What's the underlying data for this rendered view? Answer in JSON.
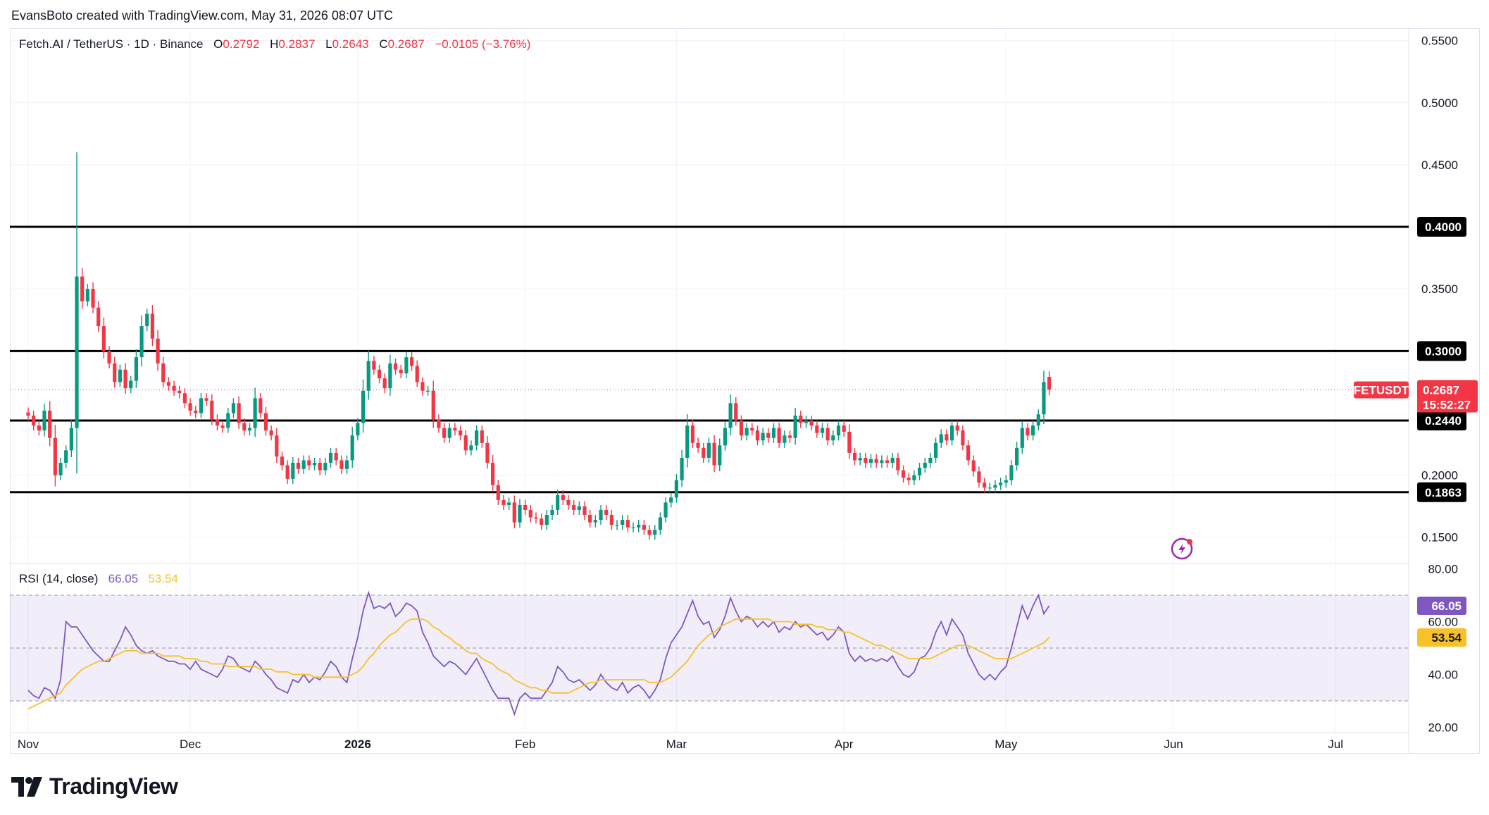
{
  "header": {
    "credit": "EvansBoto created with TradingView.com, May 31, 2026 08:07 UTC"
  },
  "legend": {
    "symbol": "Fetch.AI / TetherUS · 1D · Binance",
    "open_label": "O",
    "open": "0.2792",
    "high_label": "H",
    "high": "0.2837",
    "low_label": "L",
    "low": "0.2643",
    "close_label": "C",
    "close": "0.2687",
    "change": "−0.0105 (−3.76%)"
  },
  "rsi_legend": {
    "label": "RSI (14, close)",
    "rsi": "66.05",
    "ma": "53.54"
  },
  "logo": {
    "text": "TradingView"
  },
  "colors": {
    "up": "#089981",
    "down": "#f23645",
    "rsi": "#7e57c2",
    "rsi_ma": "#f7c12a",
    "level": "#000000"
  },
  "chart_data": [
    {
      "type": "candlestick",
      "symbol": "FETUSDT",
      "interval": "1D",
      "y_axis": {
        "min": 0.13,
        "max": 0.56,
        "ticks": [
          "0.1500",
          "0.2000",
          "0.3500",
          "0.4500",
          "0.5000",
          "0.5500"
        ]
      },
      "x_axis": {
        "labels": [
          "Nov",
          "Dec",
          "2026",
          "Feb",
          "Mar",
          "Apr",
          "May",
          "Jun",
          "Jul"
        ],
        "label_day_index": [
          0,
          30,
          61,
          92,
          120,
          151,
          181,
          212,
          242
        ]
      },
      "horizontal_levels": [
        {
          "value": 0.4,
          "label": "0.4000"
        },
        {
          "value": 0.3,
          "label": "0.3000"
        },
        {
          "value": 0.244,
          "label": "0.2440"
        },
        {
          "value": 0.1863,
          "label": "0.1863"
        }
      ],
      "last_price": {
        "ticker": "FETUSDT",
        "value": 0.2687,
        "label": "0.2687",
        "countdown": "15:52:27"
      },
      "close_approx": [
        0.248,
        0.24,
        0.236,
        0.252,
        0.23,
        0.2,
        0.21,
        0.22,
        0.238,
        0.36,
        0.34,
        0.35,
        0.335,
        0.32,
        0.3,
        0.29,
        0.275,
        0.285,
        0.27,
        0.276,
        0.295,
        0.32,
        0.33,
        0.31,
        0.29,
        0.275,
        0.272,
        0.268,
        0.266,
        0.258,
        0.252,
        0.25,
        0.262,
        0.26,
        0.245,
        0.24,
        0.238,
        0.25,
        0.258,
        0.242,
        0.236,
        0.238,
        0.262,
        0.25,
        0.236,
        0.232,
        0.215,
        0.208,
        0.197,
        0.21,
        0.205,
        0.212,
        0.208,
        0.21,
        0.204,
        0.21,
        0.218,
        0.212,
        0.205,
        0.212,
        0.232,
        0.242,
        0.268,
        0.292,
        0.285,
        0.278,
        0.27,
        0.29,
        0.285,
        0.282,
        0.295,
        0.288,
        0.275,
        0.268,
        0.268,
        0.245,
        0.238,
        0.23,
        0.238,
        0.236,
        0.232,
        0.22,
        0.224,
        0.236,
        0.226,
        0.21,
        0.192,
        0.18,
        0.176,
        0.178,
        0.162,
        0.176,
        0.172,
        0.166,
        0.165,
        0.16,
        0.168,
        0.172,
        0.184,
        0.18,
        0.176,
        0.172,
        0.175,
        0.168,
        0.162,
        0.164,
        0.172,
        0.168,
        0.16,
        0.16,
        0.164,
        0.158,
        0.158,
        0.16,
        0.156,
        0.152,
        0.156,
        0.166,
        0.178,
        0.182,
        0.196,
        0.214,
        0.24,
        0.226,
        0.222,
        0.214,
        0.226,
        0.208,
        0.224,
        0.238,
        0.258,
        0.244,
        0.232,
        0.238,
        0.236,
        0.228,
        0.234,
        0.23,
        0.238,
        0.226,
        0.232,
        0.23,
        0.248,
        0.242,
        0.244,
        0.24,
        0.234,
        0.238,
        0.228,
        0.232,
        0.24,
        0.235,
        0.218,
        0.212,
        0.214,
        0.21,
        0.213,
        0.21,
        0.212,
        0.21,
        0.214,
        0.204,
        0.198,
        0.196,
        0.2,
        0.206,
        0.21,
        0.214,
        0.226,
        0.233,
        0.228,
        0.24,
        0.236,
        0.224,
        0.212,
        0.203,
        0.194,
        0.19,
        0.19,
        0.192,
        0.194,
        0.196,
        0.208,
        0.222,
        0.238,
        0.232,
        0.24,
        0.249,
        0.275,
        0.269
      ],
      "note_last_index": 191
    },
    {
      "type": "line",
      "name": "RSI (14, close)",
      "y_axis": {
        "min": 18,
        "max": 82,
        "ticks": [
          "80.00",
          "60.00",
          "40.00",
          "20.00"
        ]
      },
      "bands": {
        "upper": 70,
        "middle": 50,
        "lower": 30
      },
      "series": [
        {
          "name": "RSI",
          "last_label": "66.05",
          "values": [
            34,
            32,
            31,
            35,
            34,
            31,
            38,
            60,
            58,
            58,
            55,
            52,
            49,
            47,
            45,
            45,
            49,
            53,
            58,
            55,
            51,
            49,
            48,
            49,
            47,
            46,
            45,
            45,
            44,
            44,
            42,
            45,
            42,
            41,
            40,
            39,
            42,
            47,
            46,
            43,
            42,
            41,
            45,
            43,
            40,
            38,
            35,
            34,
            33,
            38,
            37,
            40,
            37,
            39,
            38,
            41,
            45,
            43,
            39,
            37,
            46,
            54,
            64,
            71,
            65,
            66,
            65,
            67,
            62,
            64,
            67,
            66,
            64,
            56,
            52,
            47,
            45,
            43,
            45,
            44,
            42,
            40,
            43,
            46,
            42,
            38,
            34,
            31,
            31,
            31,
            25,
            31,
            33,
            31,
            31,
            31,
            34,
            37,
            43,
            41,
            38,
            37,
            38,
            36,
            34,
            36,
            40,
            37,
            35,
            34,
            37,
            33,
            35,
            36,
            34,
            31,
            34,
            38,
            46,
            52,
            55,
            58,
            63,
            68,
            62,
            59,
            60,
            54,
            57,
            62,
            69,
            64,
            60,
            62,
            61,
            58,
            60,
            58,
            60,
            56,
            58,
            57,
            60,
            58,
            59,
            57,
            55,
            56,
            53,
            55,
            58,
            56,
            48,
            45,
            47,
            45,
            46,
            45,
            46,
            45,
            47,
            43,
            40,
            39,
            41,
            46,
            47,
            50,
            56,
            60,
            55,
            61,
            58,
            55,
            48,
            44,
            40,
            38,
            40,
            38,
            41,
            43,
            50,
            58,
            66,
            61,
            66,
            70,
            63,
            66
          ]
        },
        {
          "name": "RSI-based MA",
          "last_label": "53.54",
          "values": [
            27,
            28,
            29,
            30,
            31,
            32,
            33,
            36,
            38,
            40,
            42,
            43,
            44,
            45,
            45,
            46,
            47,
            48,
            49,
            49,
            49,
            48,
            48,
            48,
            48,
            47,
            47,
            47,
            47,
            46,
            46,
            46,
            45,
            45,
            44,
            44,
            44,
            43,
            43,
            43,
            43,
            43,
            43,
            42,
            42,
            42,
            41,
            41,
            41,
            40,
            40,
            40,
            40,
            39,
            39,
            39,
            39,
            39,
            39,
            39,
            40,
            41,
            43,
            46,
            48,
            51,
            53,
            55,
            56,
            58,
            60,
            61,
            61,
            61,
            60,
            58,
            57,
            55,
            54,
            52,
            51,
            49,
            48,
            48,
            46,
            45,
            44,
            42,
            41,
            40,
            38,
            37,
            36,
            35,
            35,
            34,
            34,
            33,
            33,
            33,
            33,
            34,
            35,
            36,
            37,
            37,
            38,
            38,
            38,
            38,
            38,
            38,
            38,
            38,
            38,
            37,
            37,
            37,
            38,
            39,
            41,
            43,
            45,
            48,
            51,
            53,
            55,
            56,
            58,
            59,
            60,
            61,
            61,
            61,
            61,
            61,
            61,
            61,
            60,
            60,
            60,
            60,
            59,
            59,
            59,
            59,
            58,
            58,
            57,
            57,
            57,
            56,
            56,
            55,
            54,
            53,
            52,
            51,
            51,
            50,
            49,
            48,
            47,
            46,
            46,
            46,
            46,
            46,
            47,
            48,
            49,
            50,
            51,
            51,
            51,
            50,
            49,
            48,
            47,
            46,
            46,
            46,
            46,
            47,
            48,
            49,
            50,
            51,
            52,
            54
          ]
        }
      ]
    }
  ]
}
